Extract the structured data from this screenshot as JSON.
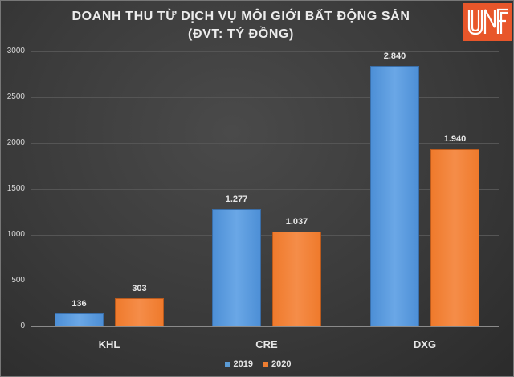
{
  "title_line1": "DOANH THU TỪ DỊCH VỤ MÔI GIỚI BẤT ĐỘNG SẢN",
  "title_line2": "(ĐVT: TỶ ĐỒNG)",
  "logo_text": "UNF",
  "colors": {
    "series_2019": "#5b9bd5",
    "series_2020": "#ed7d31",
    "background": "#3c3c3c",
    "logo": "#e8562a"
  },
  "yticks": [
    "3000",
    "2500",
    "2000",
    "1500",
    "1000",
    "500",
    "0"
  ],
  "categories": [
    "KHL",
    "CRE",
    "DXG"
  ],
  "bar_labels": [
    [
      "136",
      "303"
    ],
    [
      "1.277",
      "1.037"
    ],
    [
      "2.840",
      "1.940"
    ]
  ],
  "legend": [
    "2019",
    "2020"
  ],
  "chart_data": {
    "type": "bar",
    "title": "DOANH THU TỪ DỊCH VỤ MÔI GIỚI BẤT ĐỘNG SẢN (ĐVT: TỶ ĐỒNG)",
    "categories": [
      "KHL",
      "CRE",
      "DXG"
    ],
    "series": [
      {
        "name": "2019",
        "values": [
          136,
          1277,
          2840
        ],
        "color": "#5b9bd5"
      },
      {
        "name": "2020",
        "values": [
          303,
          1037,
          1940
        ],
        "color": "#ed7d31"
      }
    ],
    "xlabel": "",
    "ylabel": "",
    "ylim": [
      0,
      3000
    ],
    "yticks": [
      0,
      500,
      1000,
      1500,
      2000,
      2500,
      3000
    ],
    "grid": true,
    "legend_position": "bottom",
    "data_labels": true
  }
}
